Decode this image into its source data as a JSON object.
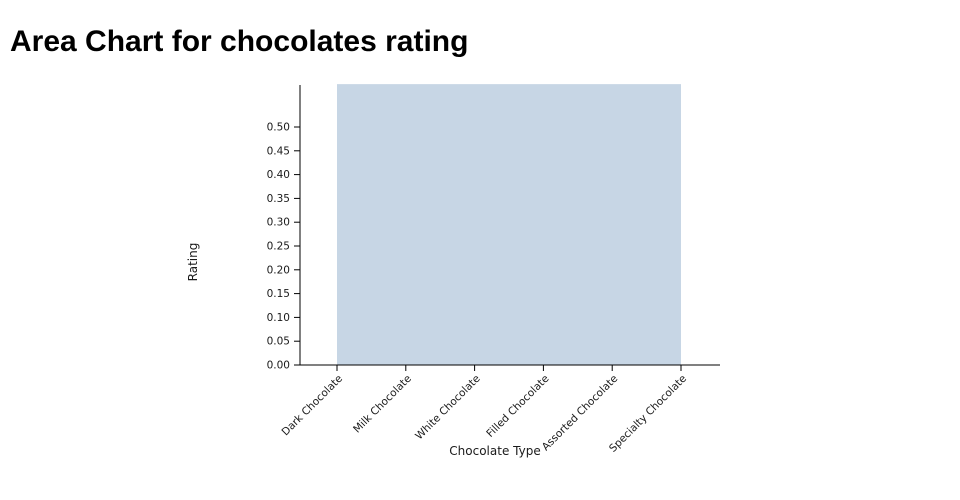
{
  "title": "Area Chart for chocolates rating",
  "chart_data": {
    "type": "area",
    "title": "Area Chart for chocolates rating",
    "xlabel": "Chocolate Type",
    "ylabel": "Rating",
    "categories": [
      "Dark Chocolate",
      "Milk Chocolate",
      "White Chocolate",
      "Filled Chocolate",
      "Assorted Chocolate",
      "Specialty Chocolate"
    ],
    "values": [
      0.59,
      0.59,
      0.59,
      0.59,
      0.59,
      0.59
    ],
    "y_ticks": [
      "0.00",
      "0.05",
      "0.10",
      "0.15",
      "0.20",
      "0.25",
      "0.30",
      "0.35",
      "0.40",
      "0.45",
      "0.50"
    ],
    "ylim": [
      0,
      0.59
    ],
    "grid": false,
    "legend": false,
    "fill_color": "#c7d6e5",
    "axis_color": "#000000",
    "label_color": "#1a1a1a"
  }
}
